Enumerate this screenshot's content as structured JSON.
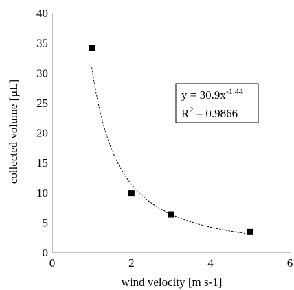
{
  "chart_data": {
    "type": "scatter",
    "xlabel": "wind velocity [m s-1]",
    "ylabel": "collected volume [µL]",
    "xlim": [
      0,
      6
    ],
    "ylim": [
      0,
      40
    ],
    "x_ticks": [
      0,
      2,
      4,
      6
    ],
    "y_ticks": [
      0,
      5,
      10,
      15,
      20,
      25,
      30,
      35,
      40
    ],
    "grid": false,
    "series": [
      {
        "marker": "square",
        "color": "#000000",
        "points": [
          {
            "x": 1,
            "y": 34.1
          },
          {
            "x": 2,
            "y": 9.9
          },
          {
            "x": 3,
            "y": 6.3
          },
          {
            "x": 5,
            "y": 3.4
          }
        ]
      }
    ],
    "trendline": {
      "type": "power",
      "coefficient": 30.9,
      "exponent": -1.44,
      "x_range": [
        1,
        5
      ],
      "style": "dotted",
      "equation": {
        "lhs": "y = 30.9x",
        "exponent_text": "-1.44",
        "r2_prefix": "R",
        "r2_sup": "2",
        "r2_rest": " = 0.9866"
      }
    }
  }
}
